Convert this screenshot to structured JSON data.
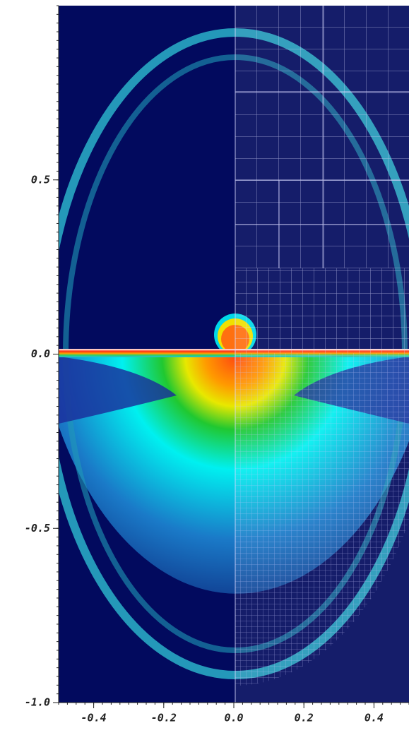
{
  "chart_data": {
    "type": "image",
    "xlim": [
      -0.5,
      0.5
    ],
    "ylim": [
      -1.0,
      1.0
    ],
    "xticks": [
      -0.4,
      -0.2,
      {
        "value": 0,
        "label": "0.0"
      },
      0.2,
      0.4
    ],
    "yticks": [
      {
        "value": -1,
        "label": "-1.0"
      },
      -0.5,
      {
        "value": 0,
        "label": "0.0"
      },
      0.5
    ]
  }
}
